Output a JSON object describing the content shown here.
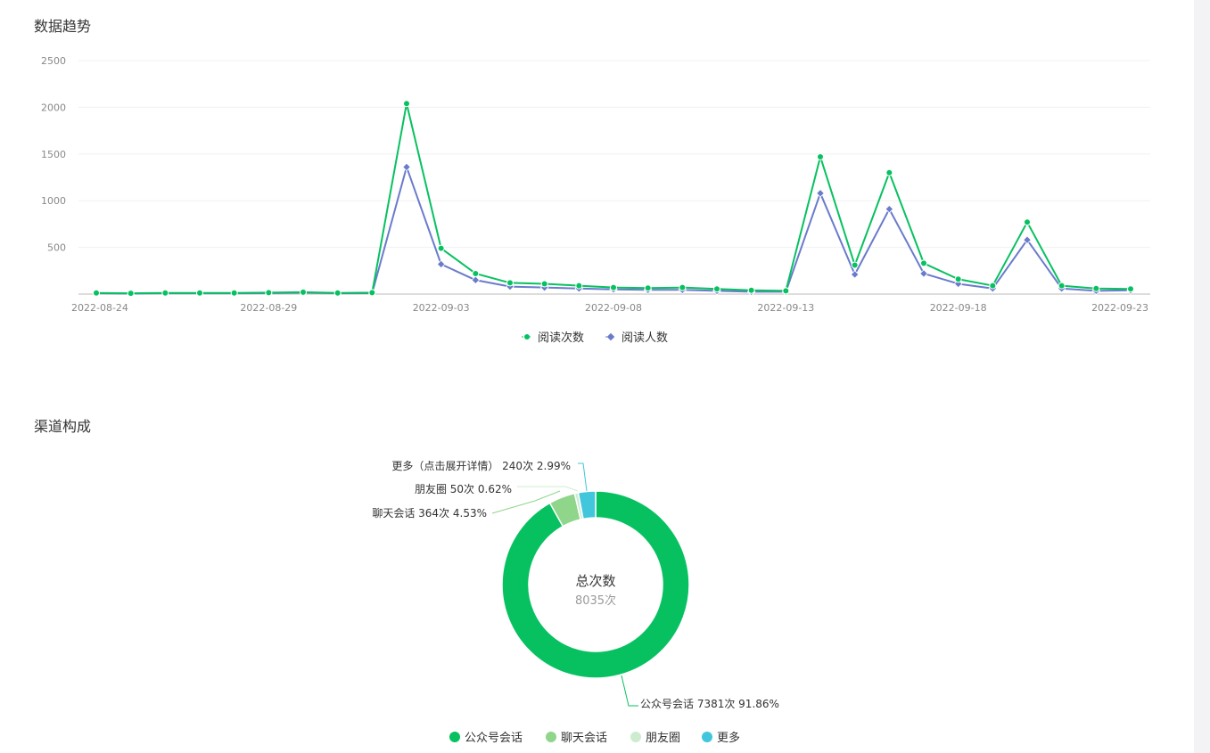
{
  "sections": {
    "trend_title": "数据趋势",
    "channel_title": "渠道构成"
  },
  "colors": {
    "reads": "#07c160",
    "readers": "#6a7bcc",
    "pie": [
      "#07c160",
      "#8fd68a",
      "#cdeccf",
      "#41c6dc"
    ]
  },
  "chart_data": [
    {
      "type": "line",
      "ylim": [
        0,
        2500
      ],
      "yticks": [
        "500",
        "1000",
        "1500",
        "2000",
        "2500"
      ],
      "ytick_values": [
        500,
        1000,
        1500,
        2000,
        2500
      ],
      "x": [
        "2022-08-24",
        "2022-08-25",
        "2022-08-26",
        "2022-08-27",
        "2022-08-28",
        "2022-08-29",
        "2022-08-30",
        "2022-08-31",
        "2022-09-01",
        "2022-09-02",
        "2022-09-03",
        "2022-09-04",
        "2022-09-05",
        "2022-09-06",
        "2022-09-07",
        "2022-09-08",
        "2022-09-09",
        "2022-09-10",
        "2022-09-11",
        "2022-09-12",
        "2022-09-13",
        "2022-09-14",
        "2022-09-15",
        "2022-09-16",
        "2022-09-17",
        "2022-09-18",
        "2022-09-19",
        "2022-09-20",
        "2022-09-21",
        "2022-09-22",
        "2022-09-23"
      ],
      "xtick_labels": [
        "2022-08-24",
        "2022-08-29",
        "2022-09-03",
        "2022-09-08",
        "2022-09-13",
        "2022-09-18",
        "2022-09-23"
      ],
      "series": [
        {
          "name": "阅读次数",
          "values": [
            12,
            8,
            12,
            12,
            12,
            15,
            20,
            12,
            15,
            2040,
            490,
            220,
            120,
            110,
            90,
            70,
            65,
            70,
            55,
            40,
            35,
            1470,
            310,
            1300,
            330,
            160,
            90,
            770,
            90,
            60,
            55
          ]
        },
        {
          "name": "阅读人数",
          "values": [
            8,
            5,
            8,
            8,
            8,
            10,
            15,
            8,
            10,
            1360,
            320,
            150,
            80,
            70,
            60,
            50,
            45,
            45,
            35,
            25,
            25,
            1080,
            210,
            910,
            220,
            110,
            60,
            580,
            60,
            35,
            40
          ]
        }
      ],
      "legend": "bottom"
    },
    {
      "type": "pie",
      "center_title": "总次数",
      "center_value": "8035次",
      "slices": [
        {
          "name": "公众号会话",
          "value": 7381,
          "label": "公众号会话 7381次 91.86%"
        },
        {
          "name": "聊天会话",
          "value": 364,
          "label": "聊天会话 364次 4.53%"
        },
        {
          "name": "朋友圈",
          "value": 50,
          "label": "朋友圈 50次 0.62%"
        },
        {
          "name": "更多",
          "value": 240,
          "label": "更多（点击展开详情） 240次 2.99%"
        }
      ],
      "legend": "bottom"
    }
  ]
}
